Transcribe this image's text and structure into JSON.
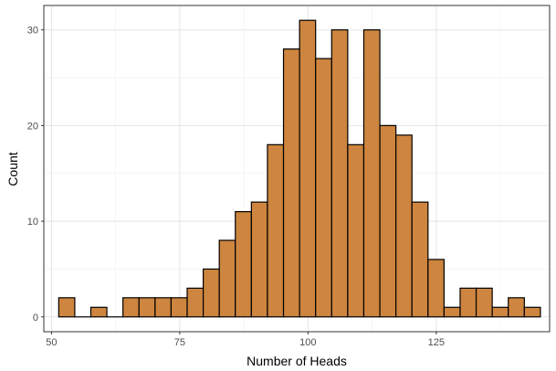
{
  "chart_data": {
    "type": "bar",
    "title": "",
    "xlabel": "Number of Heads",
    "ylabel": "Count",
    "xlim": [
      48.5,
      147.1
    ],
    "ylim": [
      -1.55,
      32.55
    ],
    "x_ticks": [
      50,
      75,
      100,
      125
    ],
    "y_ticks": [
      0,
      10,
      20,
      30
    ],
    "grid": true,
    "fill_color": "#CD853F",
    "edge_color": "#000000",
    "bin_width": 3.13,
    "bin_centers": [
      52.97,
      56.1,
      59.23,
      62.36,
      65.49,
      68.62,
      71.75,
      74.88,
      78.01,
      81.14,
      84.27,
      87.4,
      90.53,
      93.66,
      96.79,
      99.92,
      103.05,
      106.18,
      109.31,
      112.44,
      115.57,
      118.7,
      121.83,
      124.96,
      128.09,
      131.22,
      134.35,
      137.48,
      140.61,
      143.74
    ],
    "values": [
      2,
      0,
      1,
      0,
      2,
      2,
      2,
      2,
      3,
      5,
      8,
      11,
      12,
      18,
      28,
      31,
      27,
      30,
      18,
      30,
      20,
      19,
      12,
      6,
      1,
      3,
      3,
      1,
      2,
      1
    ]
  }
}
